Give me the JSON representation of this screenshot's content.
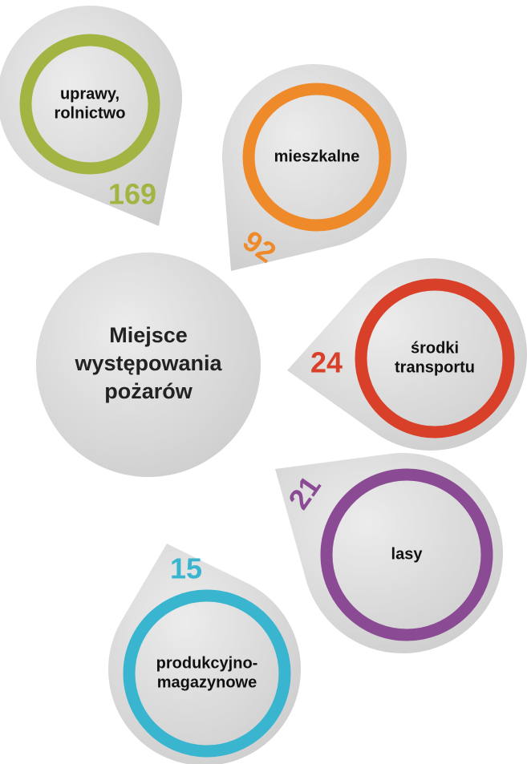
{
  "title": [
    "Miejsce",
    "występowania",
    "pożarów"
  ],
  "nodes": [
    {
      "label": [
        "uprawy,",
        "rolnictwo"
      ],
      "value": 169,
      "color": "#a3b443"
    },
    {
      "label": [
        "mieszkalne"
      ],
      "value": 92,
      "color": "#ef8a2b"
    },
    {
      "label": [
        "środki",
        "transportu"
      ],
      "value": 24,
      "color": "#d9402a"
    },
    {
      "label": [
        "lasy"
      ],
      "value": 21,
      "color": "#8b4a94"
    },
    {
      "label": [
        "produkcyjno-",
        "magazynowe"
      ],
      "value": 15,
      "color": "#3ab5cf"
    }
  ]
}
